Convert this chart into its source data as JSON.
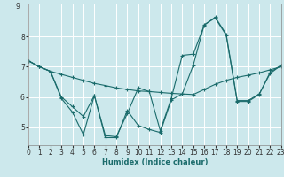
{
  "xlabel": "Humidex (Indice chaleur)",
  "bg_color": "#cce8ec",
  "line_color": "#1a6b6b",
  "grid_color": "#ffffff",
  "xlim": [
    0,
    23
  ],
  "ylim": [
    4.4,
    9.1
  ],
  "yticks": [
    5,
    6,
    7,
    8
  ],
  "ytick_extra": 9,
  "xticks": [
    0,
    1,
    2,
    3,
    4,
    5,
    6,
    7,
    8,
    9,
    10,
    11,
    12,
    13,
    14,
    15,
    16,
    17,
    18,
    19,
    20,
    21,
    22,
    23
  ],
  "series": [
    {
      "x": [
        0,
        1,
        2,
        3,
        4,
        5,
        6,
        7,
        8,
        9,
        10,
        11,
        12,
        13,
        14,
        15,
        16,
        17,
        18,
        19,
        20,
        21,
        22,
        23
      ],
      "y": [
        7.2,
        7.0,
        6.85,
        6.75,
        6.65,
        6.55,
        6.45,
        6.38,
        6.3,
        6.25,
        6.2,
        6.18,
        6.15,
        6.12,
        6.1,
        6.08,
        6.25,
        6.42,
        6.55,
        6.65,
        6.72,
        6.8,
        6.9,
        7.0
      ]
    },
    {
      "x": [
        0,
        1,
        2,
        3,
        4,
        5,
        6,
        7,
        8,
        9,
        10,
        11,
        12,
        13,
        14,
        15,
        16,
        17,
        18,
        19,
        20,
        21,
        22,
        23
      ],
      "y": [
        7.2,
        7.0,
        6.85,
        5.95,
        5.5,
        4.75,
        6.05,
        4.65,
        4.65,
        5.55,
        5.05,
        4.92,
        4.82,
        5.9,
        6.1,
        7.05,
        8.4,
        8.62,
        8.05,
        5.85,
        5.85,
        6.08,
        6.82,
        7.05
      ]
    },
    {
      "x": [
        0,
        1,
        2,
        3,
        4,
        5,
        6,
        7,
        8,
        9,
        10,
        11,
        12,
        13,
        14,
        15,
        16,
        17,
        18,
        19,
        20,
        21,
        22,
        23
      ],
      "y": [
        7.2,
        7.0,
        6.85,
        6.0,
        5.68,
        5.35,
        6.05,
        4.72,
        4.68,
        5.45,
        6.3,
        6.18,
        4.88,
        5.95,
        7.38,
        7.42,
        8.38,
        8.65,
        8.08,
        5.88,
        5.88,
        6.1,
        6.78,
        7.05
      ]
    }
  ]
}
